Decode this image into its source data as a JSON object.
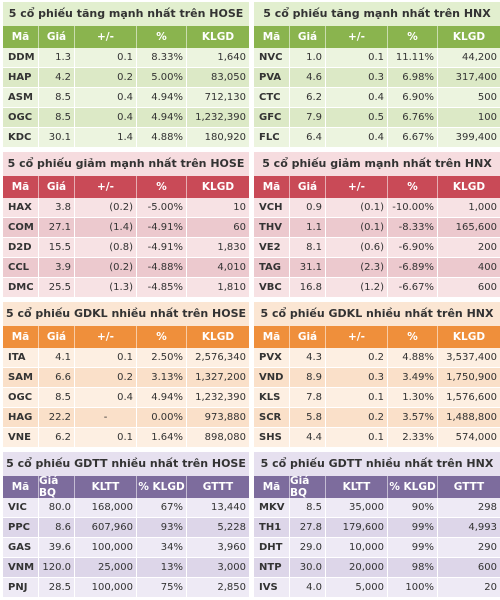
{
  "panels": [
    {
      "id": "gainers-hose",
      "theme": "green",
      "title": "5 cổ phiếu tăng mạnh nhất trên HOSE",
      "columns": [
        "Mã",
        "Giá",
        "+/-",
        "%",
        "KLGD"
      ],
      "rows": [
        [
          "DDM",
          "1.3",
          "0.1",
          "8.33%",
          "1,640"
        ],
        [
          "HAP",
          "4.2",
          "0.2",
          "5.00%",
          "83,050"
        ],
        [
          "ASM",
          "8.5",
          "0.4",
          "4.94%",
          "712,130"
        ],
        [
          "OGC",
          "8.5",
          "0.4",
          "4.94%",
          "1,232,390"
        ],
        [
          "KDC",
          "30.1",
          "1.4",
          "4.88%",
          "180,920"
        ]
      ]
    },
    {
      "id": "gainers-hnx",
      "theme": "green",
      "title": "5 cổ phiếu tăng mạnh nhất trên HNX",
      "columns": [
        "Mã",
        "Giá",
        "+/-",
        "%",
        "KLGD"
      ],
      "rows": [
        [
          "NVC",
          "1.0",
          "0.1",
          "11.11%",
          "44,200"
        ],
        [
          "PVA",
          "4.6",
          "0.3",
          "6.98%",
          "317,400"
        ],
        [
          "CTC",
          "6.2",
          "0.4",
          "6.90%",
          "500"
        ],
        [
          "GFC",
          "7.9",
          "0.5",
          "6.76%",
          "100"
        ],
        [
          "FLC",
          "6.4",
          "0.4",
          "6.67%",
          "399,400"
        ]
      ]
    },
    {
      "id": "losers-hose",
      "theme": "red",
      "title": "5 cổ phiếu giảm mạnh nhất trên HOSE",
      "columns": [
        "Mã",
        "Giá",
        "+/-",
        "%",
        "KLGD"
      ],
      "rows": [
        [
          "HAX",
          "3.8",
          "(0.2)",
          "-5.00%",
          "10"
        ],
        [
          "COM",
          "27.1",
          "(1.4)",
          "-4.91%",
          "60"
        ],
        [
          "D2D",
          "15.5",
          "(0.8)",
          "-4.91%",
          "1,830"
        ],
        [
          "CCL",
          "3.9",
          "(0.2)",
          "-4.88%",
          "4,010"
        ],
        [
          "DMC",
          "25.5",
          "(1.3)",
          "-4.85%",
          "1,810"
        ]
      ]
    },
    {
      "id": "losers-hnx",
      "theme": "red",
      "title": "5 cổ phiếu giảm mạnh nhất trên HNX",
      "columns": [
        "Mã",
        "Giá",
        "+/-",
        "%",
        "KLGD"
      ],
      "rows": [
        [
          "VCH",
          "0.9",
          "(0.1)",
          "-10.00%",
          "1,000"
        ],
        [
          "THV",
          "1.1",
          "(0.1)",
          "-8.33%",
          "165,600"
        ],
        [
          "VE2",
          "8.1",
          "(0.6)",
          "-6.90%",
          "200"
        ],
        [
          "TAG",
          "31.1",
          "(2.3)",
          "-6.89%",
          "400"
        ],
        [
          "VBC",
          "16.8",
          "(1.2)",
          "-6.67%",
          "600"
        ]
      ]
    },
    {
      "id": "volume-hose",
      "theme": "orange",
      "title": "5 cổ phiếu GDKL nhiều nhất trên HOSE",
      "columns": [
        "Mã",
        "Giá",
        "+/-",
        "%",
        "KLGD"
      ],
      "rows": [
        [
          "ITA",
          "4.1",
          "0.1",
          "2.50%",
          "2,576,340"
        ],
        [
          "SAM",
          "6.6",
          "0.2",
          "3.13%",
          "1,327,200"
        ],
        [
          "OGC",
          "8.5",
          "0.4",
          "4.94%",
          "1,232,390"
        ],
        [
          "HAG",
          "22.2",
          "-",
          "0.00%",
          "973,880"
        ],
        [
          "VNE",
          "6.2",
          "0.1",
          "1.64%",
          "898,080"
        ]
      ]
    },
    {
      "id": "volume-hnx",
      "theme": "orange",
      "title": "5 cổ phiếu GDKL nhiều nhất trên HNX",
      "columns": [
        "Mã",
        "Giá",
        "+/-",
        "%",
        "KLGD"
      ],
      "rows": [
        [
          "PVX",
          "4.3",
          "0.2",
          "4.88%",
          "3,537,400"
        ],
        [
          "VND",
          "8.9",
          "0.3",
          "3.49%",
          "1,750,900"
        ],
        [
          "KLS",
          "7.8",
          "0.1",
          "1.30%",
          "1,576,600"
        ],
        [
          "SCR",
          "5.8",
          "0.2",
          "3.57%",
          "1,488,800"
        ],
        [
          "SHS",
          "4.4",
          "0.1",
          "2.33%",
          "574,000"
        ]
      ]
    },
    {
      "id": "value-hose",
      "theme": "purple",
      "title": "5 cổ phiếu GDTT nhiều nhất trên HOSE",
      "columns": [
        "Mã",
        "Giá BQ",
        "KLTT",
        "% KLGD",
        "GTTT"
      ],
      "rows": [
        [
          "VIC",
          "80.0",
          "168,000",
          "67%",
          "13,440"
        ],
        [
          "PPC",
          "8.6",
          "607,960",
          "93%",
          "5,228"
        ],
        [
          "GAS",
          "39.6",
          "100,000",
          "34%",
          "3,960"
        ],
        [
          "VNM",
          "120.0",
          "25,000",
          "13%",
          "3,000"
        ],
        [
          "PNJ",
          "28.5",
          "100,000",
          "75%",
          "2,850"
        ]
      ]
    },
    {
      "id": "value-hnx",
      "theme": "purple",
      "title": "5 cổ phiếu GDTT nhiều nhất trên HNX",
      "columns": [
        "Mã",
        "Giá BQ",
        "KLTT",
        "% KLGD",
        "GTTT"
      ],
      "rows": [
        [
          "MKV",
          "8.5",
          "35,000",
          "90%",
          "298"
        ],
        [
          "TH1",
          "27.8",
          "179,600",
          "99%",
          "4,993"
        ],
        [
          "DHT",
          "29.0",
          "10,000",
          "99%",
          "290"
        ],
        [
          "NTP",
          "30.0",
          "20,000",
          "98%",
          "600"
        ],
        [
          "IVS",
          "4.0",
          "5,000",
          "100%",
          "20"
        ]
      ]
    }
  ]
}
